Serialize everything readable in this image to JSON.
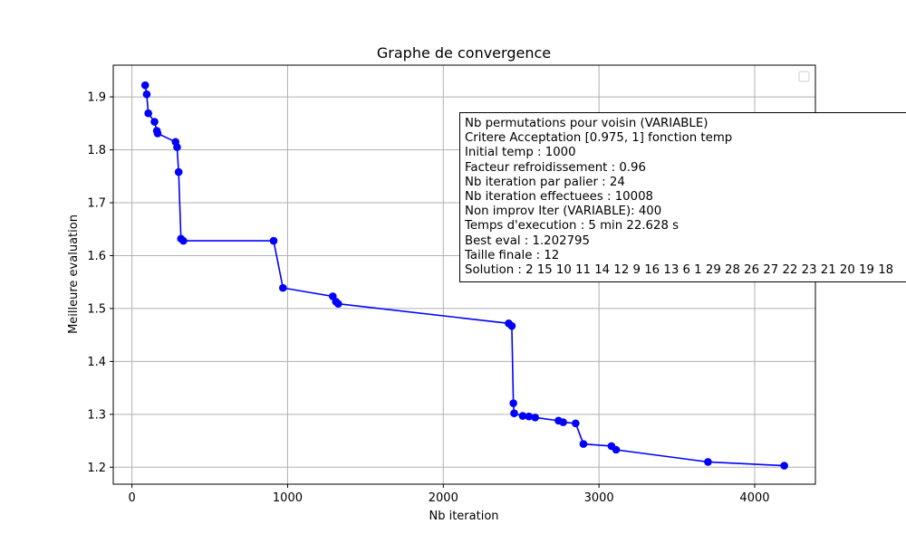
{
  "chart_data": {
    "type": "line",
    "title": "Graphe de convergence",
    "xlabel": "Nb iteration",
    "ylabel": "Meilleure evaluation",
    "xlim": [
      -120,
      4390
    ],
    "ylim": [
      1.168,
      1.96
    ],
    "xticks": [
      0,
      1000,
      2000,
      3000,
      4000
    ],
    "yticks": [
      1.2,
      1.3,
      1.4,
      1.5,
      1.6,
      1.7,
      1.8,
      1.9
    ],
    "grid": true,
    "legend": "top-right, empty",
    "line_color": "#0000ff",
    "x": [
      85,
      95,
      105,
      145,
      160,
      165,
      280,
      290,
      300,
      315,
      330,
      910,
      970,
      1290,
      1310,
      1325,
      2420,
      2440,
      2450,
      2455,
      2510,
      2550,
      2590,
      2740,
      2770,
      2850,
      2900,
      3080,
      3110,
      3700,
      4190
    ],
    "y": [
      1.922,
      1.905,
      1.869,
      1.853,
      1.836,
      1.831,
      1.815,
      1.805,
      1.758,
      1.632,
      1.628,
      1.628,
      1.539,
      1.523,
      1.513,
      1.509,
      1.472,
      1.467,
      1.321,
      1.302,
      1.297,
      1.296,
      1.294,
      1.288,
      1.285,
      1.283,
      1.244,
      1.24,
      1.233,
      1.21,
      1.203
    ]
  },
  "info_box": {
    "lines": [
      "Nb permutations pour voisin (VARIABLE)",
      "Critere Acceptation [0.975, 1] fonction temp",
      "Initial temp : 1000",
      "Facteur refroidissement : 0.96",
      "Nb iteration par palier : 24",
      "Nb iteration effectuees : 10008",
      "Non improv Iter (VARIABLE): 400",
      "Temps d'execution : 5 min 22.628 s",
      "Best eval : 1.202795",
      "Taille finale : 12",
      "Solution : 2 15 10 11 14 12 9 16 13 6 1 29 28 26 27 22 23 21 20 19 18"
    ]
  }
}
